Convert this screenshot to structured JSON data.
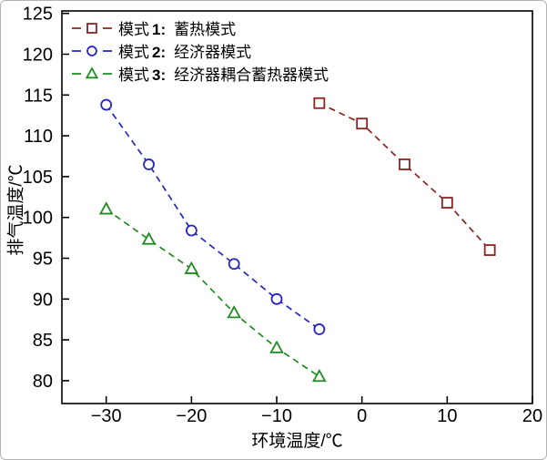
{
  "figure": {
    "background": "#ffffff",
    "border_color": "#b3b3b3",
    "frame_color": "#000000"
  },
  "chart_data": {
    "type": "line",
    "title": "",
    "xlabel": "环境温度/℃",
    "ylabel": "排气温度/℃",
    "xlim": [
      -35.2,
      20
    ],
    "ylim": [
      77.2,
      125.3
    ],
    "xticks": [
      -30,
      -20,
      -10,
      0,
      10,
      20
    ],
    "yticks": [
      80,
      85,
      90,
      95,
      100,
      105,
      110,
      115,
      120,
      125
    ],
    "grid": false,
    "line_style": "dashed",
    "legend_position": "top-left-inside",
    "series": [
      {
        "mode": "模式",
        "num": "1:",
        "name": "蓄热模式",
        "marker": "square",
        "color": "#8b2423",
        "x": [
          -5,
          0,
          5,
          10,
          15
        ],
        "y": [
          114,
          111.5,
          106.5,
          101.8,
          96
        ]
      },
      {
        "mode": "模式",
        "num": "2:",
        "name": "经济器模式",
        "marker": "circle",
        "color": "#2626c4",
        "x": [
          -30,
          -25,
          -20,
          -15,
          -10,
          -5
        ],
        "y": [
          113.8,
          106.5,
          98.4,
          94.3,
          90,
          86.3
        ]
      },
      {
        "mode": "模式",
        "num": "3:",
        "name": "经济器耦合蓄热器模式",
        "marker": "triangle",
        "color": "#1e8c1e",
        "x": [
          -30,
          -25,
          -20,
          -15,
          -10,
          -5
        ],
        "y": [
          101,
          97.3,
          93.7,
          88.3,
          84,
          80.5
        ]
      }
    ]
  }
}
